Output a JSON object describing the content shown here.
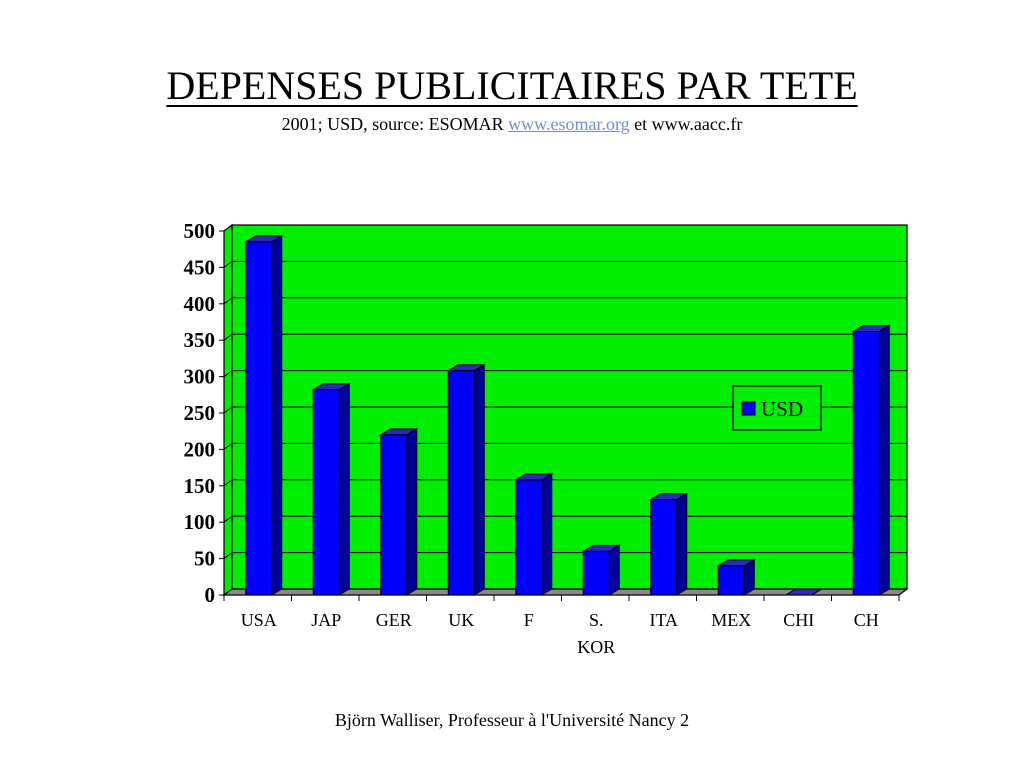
{
  "slide": {
    "title": "DEPENSES PUBLICITAIRES PAR TETE",
    "subtitle_prefix": "2001; USD, source: ESOMAR",
    "subtitle_link": "www.esomar.org",
    "subtitle_suffix": "et www.aacc.fr",
    "footer": "Björn Walliser, Professeur à l'Université Nancy 2"
  },
  "colors": {
    "plot_background": "#00ee00",
    "bar_front": "#0000ff",
    "bar_top": "#2a2ab8",
    "bar_side": "#000099",
    "floor": "#8a8a8a",
    "link": "#6f8fd6"
  },
  "chart_data": {
    "type": "bar",
    "title": "",
    "xlabel": "",
    "ylabel": "",
    "categories": [
      "USA",
      "JAP",
      "GER",
      "UK",
      "F",
      "S. KOR",
      "ITA",
      "MEX",
      "CHI",
      "CH"
    ],
    "series": [
      {
        "name": "USD",
        "values": [
          485,
          282,
          220,
          308,
          158,
          60,
          131,
          40,
          0,
          362
        ]
      }
    ],
    "ylim": [
      0,
      500
    ],
    "yticks": [
      0,
      50,
      100,
      150,
      200,
      250,
      300,
      350,
      400,
      450,
      500
    ],
    "grid": true,
    "legend": "right",
    "style": "3d-columns"
  }
}
